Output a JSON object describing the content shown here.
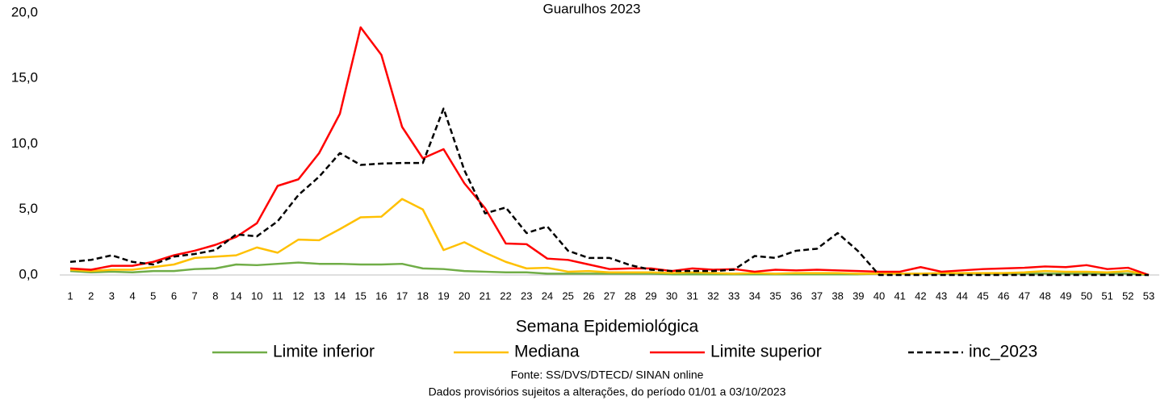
{
  "chart_data": {
    "type": "line",
    "title": "Guarulhos 2023",
    "x_label": "Semana Epidemiológica",
    "notes": [
      "Fonte: SS/DVS/DTECD/ SINAN online",
      "Dados provisórios sujeitos a alterações, do período 01/01 a 03/10/2023"
    ],
    "categories": [
      "1",
      "2",
      "3",
      "4",
      "5",
      "6",
      "7",
      "8",
      "14",
      "10",
      "11",
      "12",
      "13",
      "14",
      "15",
      "16",
      "17",
      "18",
      "19",
      "20",
      "21",
      "22",
      "23",
      "24",
      "25",
      "26",
      "27",
      "28",
      "29",
      "30",
      "31",
      "32",
      "33",
      "34",
      "35",
      "36",
      "37",
      "38",
      "39",
      "40",
      "41",
      "42",
      "43",
      "44",
      "45",
      "46",
      "47",
      "48",
      "49",
      "50",
      "51",
      "52",
      "53"
    ],
    "ylim": [
      0,
      20
    ],
    "yticks": [
      {
        "value": 0,
        "label": "0,0"
      },
      {
        "value": 5,
        "label": "5,0"
      },
      {
        "value": 10,
        "label": "10,0"
      },
      {
        "value": 15,
        "label": "15,0"
      },
      {
        "value": 20,
        "label": "20,0"
      }
    ],
    "grid": false,
    "series": [
      {
        "name": "Limite inferior",
        "color": "#70ad47",
        "dashed": false,
        "values": [
          0.3,
          0.2,
          0.25,
          0.2,
          0.3,
          0.3,
          0.45,
          0.5,
          0.8,
          0.75,
          0.85,
          0.95,
          0.85,
          0.85,
          0.8,
          0.8,
          0.85,
          0.5,
          0.45,
          0.3,
          0.25,
          0.2,
          0.2,
          0.1,
          0.1,
          0.1,
          0.1,
          0.1,
          0.1,
          0.05,
          0.05,
          0.05,
          0.05,
          0.05,
          0.05,
          0.05,
          0.05,
          0.05,
          0.05,
          0.1,
          0.1,
          0.1,
          0.1,
          0.1,
          0.1,
          0.1,
          0.1,
          0.1,
          0.1,
          0.1,
          0.1,
          0.1,
          0
        ]
      },
      {
        "name": "Mediana",
        "color": "#ffc000",
        "dashed": false,
        "values": [
          0.4,
          0.3,
          0.4,
          0.4,
          0.6,
          0.8,
          1.3,
          1.4,
          1.5,
          2.1,
          1.7,
          2.7,
          2.65,
          3.5,
          4.4,
          4.45,
          5.8,
          5.0,
          1.9,
          2.5,
          1.7,
          1.0,
          0.5,
          0.55,
          0.25,
          0.3,
          0.2,
          0.2,
          0.2,
          0.15,
          0.2,
          0.15,
          0.1,
          0.15,
          0.1,
          0.15,
          0.15,
          0.15,
          0.1,
          0.1,
          0.1,
          0.1,
          0.15,
          0.15,
          0.15,
          0.15,
          0.2,
          0.3,
          0.25,
          0.25,
          0.2,
          0.3,
          0
        ]
      },
      {
        "name": "Limite superior",
        "color": "#ff0000",
        "dashed": false,
        "values": [
          0.5,
          0.4,
          0.7,
          0.7,
          1.0,
          1.5,
          1.85,
          2.3,
          2.9,
          3.95,
          6.8,
          7.3,
          9.3,
          12.3,
          18.9,
          16.8,
          11.3,
          8.9,
          9.6,
          7.0,
          5.1,
          2.4,
          2.35,
          1.25,
          1.15,
          0.8,
          0.45,
          0.5,
          0.5,
          0.3,
          0.5,
          0.4,
          0.45,
          0.25,
          0.4,
          0.35,
          0.4,
          0.35,
          0.3,
          0.25,
          0.25,
          0.6,
          0.25,
          0.35,
          0.45,
          0.5,
          0.55,
          0.65,
          0.6,
          0.75,
          0.45,
          0.55,
          0
        ]
      },
      {
        "name": "inc_2023",
        "color": "#000000",
        "dashed": true,
        "values": [
          1.0,
          1.15,
          1.5,
          1.0,
          0.8,
          1.4,
          1.6,
          1.9,
          3.1,
          2.95,
          4.1,
          6.1,
          7.5,
          9.3,
          8.4,
          8.5,
          8.55,
          8.55,
          12.7,
          8.0,
          4.7,
          5.15,
          3.2,
          3.7,
          1.85,
          1.3,
          1.3,
          0.75,
          0.4,
          0.3,
          0.3,
          0.3,
          0.4,
          1.45,
          1.3,
          1.85,
          2.0,
          3.2,
          1.8,
          0,
          0,
          0,
          0,
          0,
          0,
          0,
          0,
          0,
          0,
          0,
          0,
          0,
          0
        ]
      }
    ]
  }
}
